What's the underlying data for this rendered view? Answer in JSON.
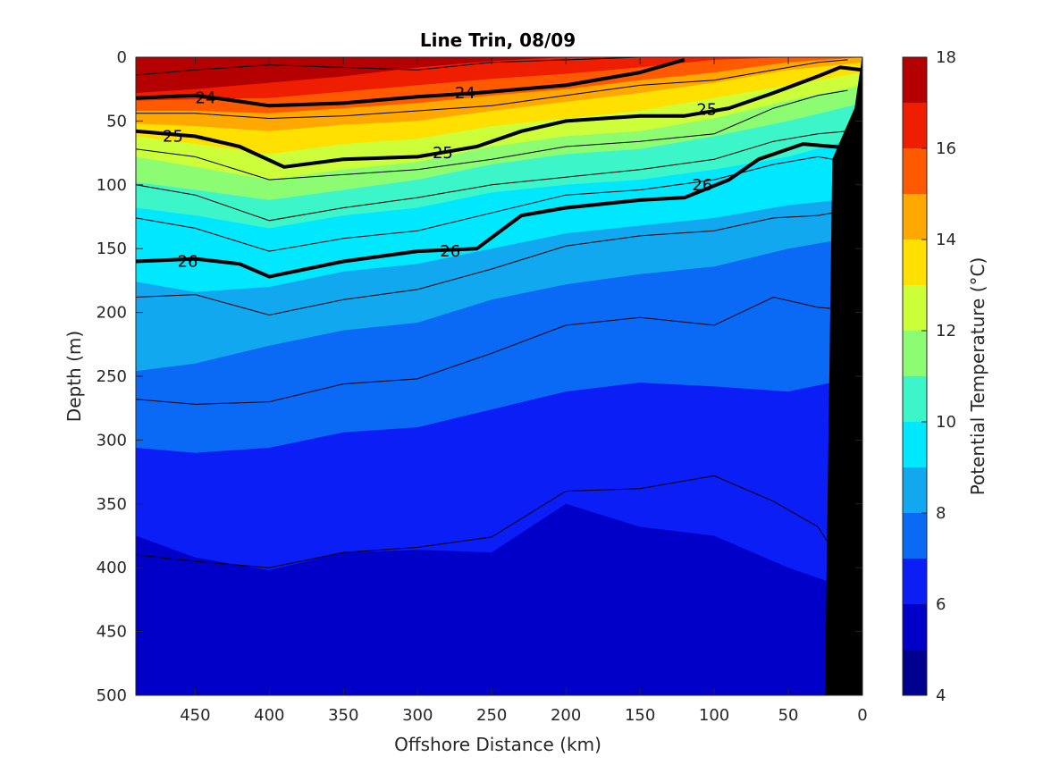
{
  "chart_data": {
    "type": "contour",
    "title": "Line Trin, 08/09",
    "xlabel": "Offshore Distance (km)",
    "ylabel": "Depth (m)",
    "colorbar_label": "Potential Temperature (°C)",
    "xlim": [
      490,
      0
    ],
    "ylim": [
      500,
      0
    ],
    "x_reversed": true,
    "y_reversed": true,
    "xticks": [
      450,
      400,
      350,
      300,
      250,
      200,
      150,
      100,
      50,
      0
    ],
    "yticks": [
      0,
      50,
      100,
      150,
      200,
      250,
      300,
      350,
      400,
      450,
      500
    ],
    "colorbar_range": [
      4,
      18
    ],
    "colorbar_ticks": [
      4,
      6,
      8,
      10,
      12,
      14,
      16,
      18
    ],
    "colorbar_levels": [
      {
        "from": 4,
        "to": 5,
        "color": "#00008f"
      },
      {
        "from": 5,
        "to": 6,
        "color": "#0000c8"
      },
      {
        "from": 6,
        "to": 7,
        "color": "#0a1ef5"
      },
      {
        "from": 7,
        "to": 8,
        "color": "#0a6af5"
      },
      {
        "from": 8,
        "to": 9,
        "color": "#12a8f0"
      },
      {
        "from": 9,
        "to": 10,
        "color": "#00e8ff"
      },
      {
        "from": 10,
        "to": 11,
        "color": "#3cf5c8"
      },
      {
        "from": 11,
        "to": 12,
        "color": "#8cfc72"
      },
      {
        "from": 12,
        "to": 13,
        "color": "#ccff3a"
      },
      {
        "from": 13,
        "to": 14,
        "color": "#ffe000"
      },
      {
        "from": 14,
        "to": 15,
        "color": "#ffa800"
      },
      {
        "from": 15,
        "to": 16,
        "color": "#ff5a00"
      },
      {
        "from": 16,
        "to": 17,
        "color": "#f01e00"
      },
      {
        "from": 17,
        "to": 18,
        "color": "#b40000"
      }
    ],
    "isotherm_fields": {
      "x": [
        490,
        450,
        400,
        350,
        300,
        250,
        200,
        150,
        100,
        50,
        20
      ],
      "levels": [
        {
          "t": 17,
          "depth": [
            28,
            25,
            20,
            15,
            8,
            3,
            0,
            0,
            0,
            0,
            0
          ]
        },
        {
          "t": 16,
          "depth": [
            34,
            33,
            32,
            27,
            22,
            17,
            13,
            8,
            2,
            0,
            0
          ]
        },
        {
          "t": 15,
          "depth": [
            42,
            42,
            44,
            40,
            36,
            30,
            25,
            18,
            12,
            4,
            0
          ]
        },
        {
          "t": 14,
          "depth": [
            52,
            54,
            58,
            53,
            50,
            42,
            35,
            28,
            20,
            10,
            4
          ]
        },
        {
          "t": 13,
          "depth": [
            62,
            68,
            76,
            68,
            64,
            54,
            48,
            42,
            32,
            22,
            12
          ]
        },
        {
          "t": 12,
          "depth": [
            78,
            86,
            96,
            88,
            82,
            70,
            62,
            58,
            48,
            34,
            22
          ]
        },
        {
          "t": 11,
          "depth": [
            98,
            104,
            112,
            104,
            96,
            84,
            76,
            72,
            62,
            50,
            36
          ]
        },
        {
          "t": 10,
          "depth": [
            118,
            124,
            134,
            124,
            118,
            106,
            100,
            96,
            88,
            78,
            62
          ]
        },
        {
          "t": 9,
          "depth": [
            176,
            184,
            180,
            168,
            162,
            150,
            138,
            132,
            126,
            116,
            110
          ]
        },
        {
          "t": 8,
          "depth": [
            246,
            240,
            226,
            214,
            208,
            190,
            178,
            170,
            164,
            150,
            140
          ]
        },
        {
          "t": 7,
          "depth": [
            306,
            310,
            306,
            294,
            290,
            276,
            262,
            255,
            258,
            262,
            250
          ]
        },
        {
          "t": 6,
          "depth": [
            375,
            392,
            402,
            388,
            386,
            388,
            350,
            368,
            375,
            400,
            420
          ]
        },
        {
          "t": 5,
          "depth": [
            500,
            500,
            500,
            500,
            500,
            500,
            500,
            500,
            500,
            500,
            500
          ]
        }
      ]
    },
    "density_contours": [
      {
        "sigma": "24",
        "x": [
          490,
          450,
          430,
          400,
          350,
          300,
          260,
          200,
          150,
          120
        ],
        "depth": [
          32,
          30,
          33,
          38,
          36,
          31,
          28,
          22,
          12,
          2
        ],
        "labels": [
          {
            "x": 443,
            "depth": 32
          },
          {
            "x": 268,
            "depth": 28
          }
        ]
      },
      {
        "sigma": "25",
        "x": [
          490,
          450,
          420,
          390,
          350,
          300,
          260,
          230,
          200,
          150,
          120,
          90,
          60,
          30,
          15,
          0
        ],
        "depth": [
          58,
          62,
          70,
          86,
          80,
          78,
          70,
          58,
          50,
          46,
          46,
          40,
          28,
          15,
          8,
          10
        ],
        "labels": [
          {
            "x": 465,
            "depth": 62
          },
          {
            "x": 283,
            "depth": 75
          },
          {
            "x": 105,
            "depth": 41
          }
        ]
      },
      {
        "sigma": "26",
        "x": [
          490,
          450,
          420,
          400,
          350,
          300,
          260,
          230,
          200,
          150,
          120,
          90,
          70,
          40,
          20,
          0
        ],
        "depth": [
          160,
          158,
          162,
          172,
          160,
          152,
          150,
          124,
          118,
          112,
          110,
          96,
          80,
          68,
          70,
          72
        ],
        "labels": [
          {
            "x": 455,
            "depth": 160
          },
          {
            "x": 278,
            "depth": 152
          },
          {
            "x": 108,
            "depth": 100
          }
        ]
      }
    ],
    "thin_contours": [
      {
        "x": [
          490,
          450,
          400,
          350,
          300,
          250,
          200,
          150,
          120
        ],
        "depth": [
          14,
          10,
          6,
          8,
          10,
          4,
          2,
          0,
          0
        ]
      },
      {
        "x": [
          490,
          450,
          400,
          350,
          300,
          250,
          200,
          150,
          100,
          60,
          30,
          10
        ],
        "depth": [
          44,
          44,
          48,
          46,
          42,
          38,
          30,
          22,
          18,
          10,
          4,
          2
        ]
      },
      {
        "x": [
          490,
          450,
          400,
          350,
          300,
          250,
          200,
          150,
          100,
          60,
          30,
          10
        ],
        "depth": [
          72,
          78,
          96,
          92,
          88,
          80,
          70,
          66,
          60,
          40,
          30,
          26
        ]
      },
      {
        "x": [
          490,
          450,
          400,
          350,
          300,
          250,
          200,
          150,
          100,
          60,
          30,
          10
        ],
        "depth": [
          100,
          108,
          128,
          118,
          110,
          100,
          94,
          88,
          80,
          66,
          60,
          58
        ]
      },
      {
        "x": [
          490,
          450,
          400,
          350,
          300,
          250,
          200,
          150,
          100,
          60,
          30,
          10
        ],
        "depth": [
          126,
          134,
          152,
          142,
          136,
          122,
          108,
          104,
          96,
          84,
          78,
          82
        ]
      },
      {
        "x": [
          490,
          450,
          400,
          350,
          300,
          250,
          200,
          150,
          100,
          60,
          30,
          10
        ],
        "depth": [
          188,
          186,
          202,
          190,
          182,
          166,
          148,
          140,
          136,
          126,
          124,
          120
        ]
      },
      {
        "x": [
          490,
          450,
          400,
          350,
          300,
          250,
          200,
          150,
          100,
          60,
          30,
          10
        ],
        "depth": [
          268,
          272,
          270,
          256,
          252,
          232,
          210,
          204,
          210,
          188,
          196,
          198
        ]
      },
      {
        "x": [
          490,
          450,
          400,
          350,
          300,
          250,
          200,
          150,
          100,
          60,
          30,
          15
        ],
        "depth": [
          390,
          395,
          400,
          388,
          384,
          376,
          340,
          338,
          328,
          348,
          368,
          395
        ]
      }
    ],
    "bathymetry": {
      "x": [
        20,
        5,
        0,
        0,
        25
      ],
      "depth": [
        80,
        40,
        0,
        500,
        500
      ]
    }
  }
}
